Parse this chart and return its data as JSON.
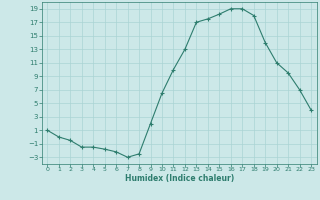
{
  "x": [
    0,
    1,
    2,
    3,
    4,
    5,
    6,
    7,
    8,
    9,
    10,
    11,
    12,
    13,
    14,
    15,
    16,
    17,
    18,
    19,
    20,
    21,
    22,
    23
  ],
  "y": [
    1,
    0,
    -0.5,
    -1.5,
    -1.5,
    -1.8,
    -2.2,
    -3,
    -2.5,
    2,
    6.5,
    10,
    13,
    17,
    17.5,
    18.2,
    19,
    19,
    18,
    14,
    11,
    9.5,
    7,
    4
  ],
  "xlim": [
    -0.5,
    23.5
  ],
  "ylim": [
    -4,
    20
  ],
  "yticks": [
    -3,
    -1,
    1,
    3,
    5,
    7,
    9,
    11,
    13,
    15,
    17,
    19
  ],
  "xticks": [
    0,
    1,
    2,
    3,
    4,
    5,
    6,
    7,
    8,
    9,
    10,
    11,
    12,
    13,
    14,
    15,
    16,
    17,
    18,
    19,
    20,
    21,
    22,
    23
  ],
  "xlabel": "Humidex (Indice chaleur)",
  "line_color": "#2e7d6e",
  "marker": "+",
  "bg_color": "#cce8e8",
  "grid_color": "#aad4d4",
  "title": ""
}
